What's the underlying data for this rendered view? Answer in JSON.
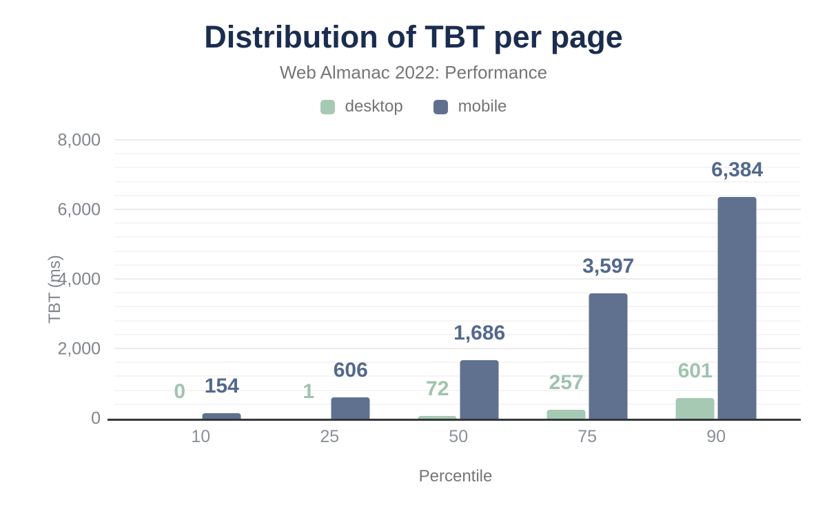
{
  "header": {
    "title": "Distribution of TBT per page",
    "subtitle": "Web Almanac 2022: Performance"
  },
  "colors": {
    "title": "#1b2d4f",
    "subtitle": "#757575",
    "axis_line": "#35373b",
    "gridline_major": "#ebebeb",
    "gridline_minor": "#f5f5f5",
    "desktop": "#a6c9b4",
    "desktop_label": "#a0c3ad",
    "mobile": "#5f718e",
    "mobile_label": "#53688d"
  },
  "chart_data": {
    "type": "bar",
    "title": "Distribution of TBT per page",
    "subtitle": "Web Almanac 2022: Performance",
    "categories": [
      10,
      25,
      50,
      75,
      90
    ],
    "series": [
      {
        "name": "desktop",
        "color": "#a6c9b4",
        "label_color": "#a0c3ad",
        "values": [
          0,
          1,
          72,
          257,
          601
        ]
      },
      {
        "name": "mobile",
        "color": "#5f718e",
        "label_color": "#53688d",
        "values": [
          154,
          606,
          1686,
          3597,
          6384
        ]
      }
    ],
    "xlabel": "Percentile",
    "ylabel": "TBT (ms)",
    "ylim": [
      0,
      8000
    ],
    "y_major_ticks": [
      0,
      2000,
      4000,
      6000,
      8000
    ],
    "y_minor_interval": 400,
    "grid": "horizontal-only",
    "legend_position": "top",
    "data_labels": "above-bars, thousands-separated"
  }
}
